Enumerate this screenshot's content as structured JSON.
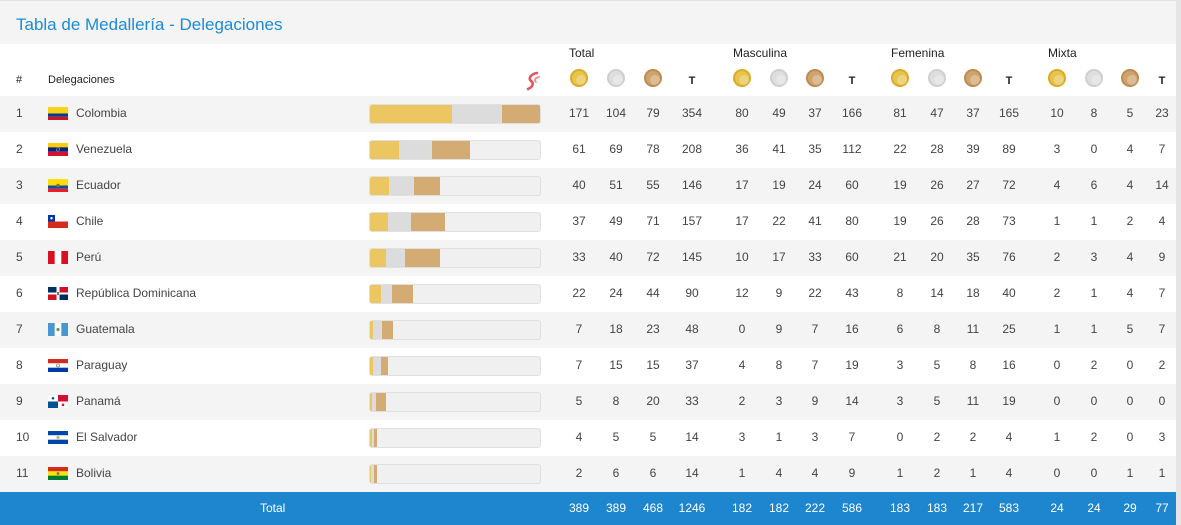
{
  "title": "Tabla de Medallería - Delegaciones",
  "header": {
    "hash": "#",
    "delegations": "Delegaciones",
    "groups": [
      "Total",
      "Masculina",
      "Femenina",
      "Mixta"
    ],
    "total_letter": "T"
  },
  "logo_icon": "swirl-logo-icon",
  "medal_icons": [
    "gold-medal-icon",
    "silver-medal-icon",
    "bronze-medal-icon"
  ],
  "colors": {
    "title": "#1d8bd6",
    "gold": "#ecc660",
    "silver": "#dcdcdc",
    "bronze": "#d3ab73",
    "footer": "#1d86cf"
  },
  "rows": [
    {
      "rank": "1",
      "country": "Colombia",
      "flag": "colombia",
      "total": [
        "171",
        "104",
        "79",
        "354"
      ],
      "masculina": [
        "80",
        "49",
        "37",
        "166"
      ],
      "femenina": [
        "81",
        "47",
        "37",
        "165"
      ],
      "mixta": [
        "10",
        "8",
        "5",
        "23"
      ]
    },
    {
      "rank": "2",
      "country": "Venezuela",
      "flag": "venezuela",
      "total": [
        "61",
        "69",
        "78",
        "208"
      ],
      "masculina": [
        "36",
        "41",
        "35",
        "112"
      ],
      "femenina": [
        "22",
        "28",
        "39",
        "89"
      ],
      "mixta": [
        "3",
        "0",
        "4",
        "7"
      ]
    },
    {
      "rank": "3",
      "country": "Ecuador",
      "flag": "ecuador",
      "total": [
        "40",
        "51",
        "55",
        "146"
      ],
      "masculina": [
        "17",
        "19",
        "24",
        "60"
      ],
      "femenina": [
        "19",
        "26",
        "27",
        "72"
      ],
      "mixta": [
        "4",
        "6",
        "4",
        "14"
      ]
    },
    {
      "rank": "4",
      "country": "Chile",
      "flag": "chile",
      "total": [
        "37",
        "49",
        "71",
        "157"
      ],
      "masculina": [
        "17",
        "22",
        "41",
        "80"
      ],
      "femenina": [
        "19",
        "26",
        "28",
        "73"
      ],
      "mixta": [
        "1",
        "1",
        "2",
        "4"
      ]
    },
    {
      "rank": "5",
      "country": "Perú",
      "flag": "peru",
      "total": [
        "33",
        "40",
        "72",
        "145"
      ],
      "masculina": [
        "10",
        "17",
        "33",
        "60"
      ],
      "femenina": [
        "21",
        "20",
        "35",
        "76"
      ],
      "mixta": [
        "2",
        "3",
        "4",
        "9"
      ]
    },
    {
      "rank": "6",
      "country": "República Dominicana",
      "flag": "dominicana",
      "total": [
        "22",
        "24",
        "44",
        "90"
      ],
      "masculina": [
        "12",
        "9",
        "22",
        "43"
      ],
      "femenina": [
        "8",
        "14",
        "18",
        "40"
      ],
      "mixta": [
        "2",
        "1",
        "4",
        "7"
      ]
    },
    {
      "rank": "7",
      "country": "Guatemala",
      "flag": "guatemala",
      "total": [
        "7",
        "18",
        "23",
        "48"
      ],
      "masculina": [
        "0",
        "9",
        "7",
        "16"
      ],
      "femenina": [
        "6",
        "8",
        "11",
        "25"
      ],
      "mixta": [
        "1",
        "1",
        "5",
        "7"
      ]
    },
    {
      "rank": "8",
      "country": "Paraguay",
      "flag": "paraguay",
      "total": [
        "7",
        "15",
        "15",
        "37"
      ],
      "masculina": [
        "4",
        "8",
        "7",
        "19"
      ],
      "femenina": [
        "3",
        "5",
        "8",
        "16"
      ],
      "mixta": [
        "0",
        "2",
        "0",
        "2"
      ]
    },
    {
      "rank": "9",
      "country": "Panamá",
      "flag": "panama",
      "total": [
        "5",
        "8",
        "20",
        "33"
      ],
      "masculina": [
        "2",
        "3",
        "9",
        "14"
      ],
      "femenina": [
        "3",
        "5",
        "11",
        "19"
      ],
      "mixta": [
        "0",
        "0",
        "0",
        "0"
      ]
    },
    {
      "rank": "10",
      "country": "El Salvador",
      "flag": "elsalvador",
      "total": [
        "4",
        "5",
        "5",
        "14"
      ],
      "masculina": [
        "3",
        "1",
        "3",
        "7"
      ],
      "femenina": [
        "0",
        "2",
        "2",
        "4"
      ],
      "mixta": [
        "1",
        "2",
        "0",
        "3"
      ]
    },
    {
      "rank": "11",
      "country": "Bolivia",
      "flag": "bolivia",
      "total": [
        "2",
        "6",
        "6",
        "14"
      ],
      "masculina": [
        "1",
        "4",
        "4",
        "9"
      ],
      "femenina": [
        "1",
        "2",
        "1",
        "4"
      ],
      "mixta": [
        "0",
        "0",
        "1",
        "1"
      ]
    }
  ],
  "footer": {
    "label": "Total",
    "total": [
      "389",
      "389",
      "468",
      "1246"
    ],
    "masculina": [
      "182",
      "182",
      "222",
      "586"
    ],
    "femenina": [
      "183",
      "183",
      "217",
      "583"
    ],
    "mixta": [
      "24",
      "24",
      "29",
      "77"
    ]
  }
}
